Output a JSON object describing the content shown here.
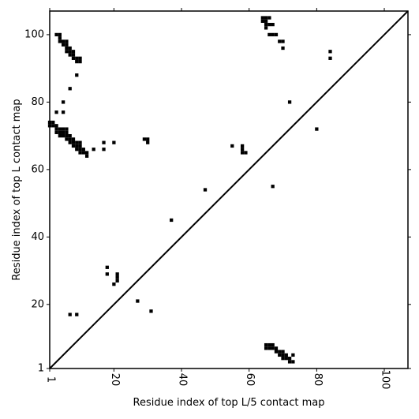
{
  "chart_data": {
    "type": "heatmap",
    "xlabel": "Residue index of top L/5 contact map",
    "ylabel": "Residue index of top L contact map",
    "xlim": [
      1,
      107
    ],
    "ylim": [
      1,
      107
    ],
    "x_ticks": [
      1,
      20,
      40,
      60,
      80,
      100
    ],
    "y_ticks": [
      1,
      20,
      40,
      60,
      80,
      100
    ],
    "x_tick_rotation": 90,
    "diagonal": true,
    "grid": false,
    "legend": "none",
    "cell_color": "#000000",
    "upper_contacts": [
      [
        1,
        73
      ],
      [
        1,
        74
      ],
      [
        2,
        73
      ],
      [
        2,
        74
      ],
      [
        3,
        71
      ],
      [
        3,
        72
      ],
      [
        3,
        73
      ],
      [
        4,
        71
      ],
      [
        4,
        72
      ],
      [
        4,
        70
      ],
      [
        5,
        70
      ],
      [
        5,
        71
      ],
      [
        5,
        72
      ],
      [
        6,
        69
      ],
      [
        6,
        70
      ],
      [
        6,
        71
      ],
      [
        6,
        72
      ],
      [
        7,
        68
      ],
      [
        7,
        69
      ],
      [
        7,
        70
      ],
      [
        8,
        67
      ],
      [
        8,
        68
      ],
      [
        8,
        69
      ],
      [
        9,
        66
      ],
      [
        9,
        67
      ],
      [
        9,
        68
      ],
      [
        10,
        65
      ],
      [
        10,
        66
      ],
      [
        10,
        67
      ],
      [
        10,
        68
      ],
      [
        11,
        65
      ],
      [
        11,
        66
      ],
      [
        12,
        64
      ],
      [
        12,
        65
      ],
      [
        14,
        66
      ],
      [
        17,
        66
      ],
      [
        17,
        68
      ],
      [
        20,
        68
      ],
      [
        29,
        69
      ],
      [
        30,
        68
      ],
      [
        30,
        69
      ],
      [
        3,
        100
      ],
      [
        4,
        98
      ],
      [
        4,
        99
      ],
      [
        4,
        100
      ],
      [
        5,
        97
      ],
      [
        5,
        98
      ],
      [
        6,
        95
      ],
      [
        6,
        96
      ],
      [
        6,
        97
      ],
      [
        6,
        98
      ],
      [
        7,
        94
      ],
      [
        7,
        95
      ],
      [
        7,
        96
      ],
      [
        8,
        93
      ],
      [
        8,
        94
      ],
      [
        8,
        95
      ],
      [
        9,
        92
      ],
      [
        9,
        93
      ],
      [
        10,
        92
      ],
      [
        10,
        93
      ],
      [
        5,
        80
      ],
      [
        5,
        77
      ],
      [
        3,
        77
      ],
      [
        7,
        84
      ],
      [
        9,
        88
      ],
      [
        18,
        31
      ],
      [
        18,
        29
      ],
      [
        20,
        26
      ],
      [
        21,
        27
      ],
      [
        21,
        28
      ],
      [
        21,
        29
      ],
      [
        27,
        21
      ],
      [
        31,
        18
      ],
      [
        7,
        17
      ],
      [
        9,
        17
      ],
      [
        37,
        45
      ],
      [
        47,
        54
      ],
      [
        55,
        67
      ],
      [
        58,
        65
      ],
      [
        58,
        66
      ],
      [
        58,
        67
      ],
      [
        59,
        65
      ],
      [
        67,
        55
      ],
      [
        72,
        80
      ],
      [
        80,
        72
      ],
      [
        64,
        104
      ],
      [
        64,
        105
      ],
      [
        65,
        102
      ],
      [
        65,
        103
      ],
      [
        65,
        104
      ],
      [
        65,
        105
      ],
      [
        66,
        105
      ],
      [
        66,
        100
      ],
      [
        66,
        103
      ],
      [
        67,
        100
      ],
      [
        67,
        103
      ],
      [
        68,
        100
      ],
      [
        69,
        98
      ],
      [
        70,
        96
      ],
      [
        70,
        98
      ],
      [
        84,
        93
      ],
      [
        84,
        95
      ]
    ],
    "lower_contacts": [
      [
        65,
        7
      ],
      [
        65,
        8
      ],
      [
        66,
        7
      ],
      [
        66,
        8
      ],
      [
        67,
        7
      ],
      [
        67,
        8
      ],
      [
        68,
        6
      ],
      [
        68,
        7
      ],
      [
        69,
        5
      ],
      [
        69,
        6
      ],
      [
        70,
        4
      ],
      [
        70,
        5
      ],
      [
        70,
        6
      ],
      [
        71,
        4
      ],
      [
        71,
        5
      ],
      [
        72,
        3
      ],
      [
        72,
        4
      ],
      [
        73,
        3
      ],
      [
        73,
        5
      ]
    ]
  }
}
